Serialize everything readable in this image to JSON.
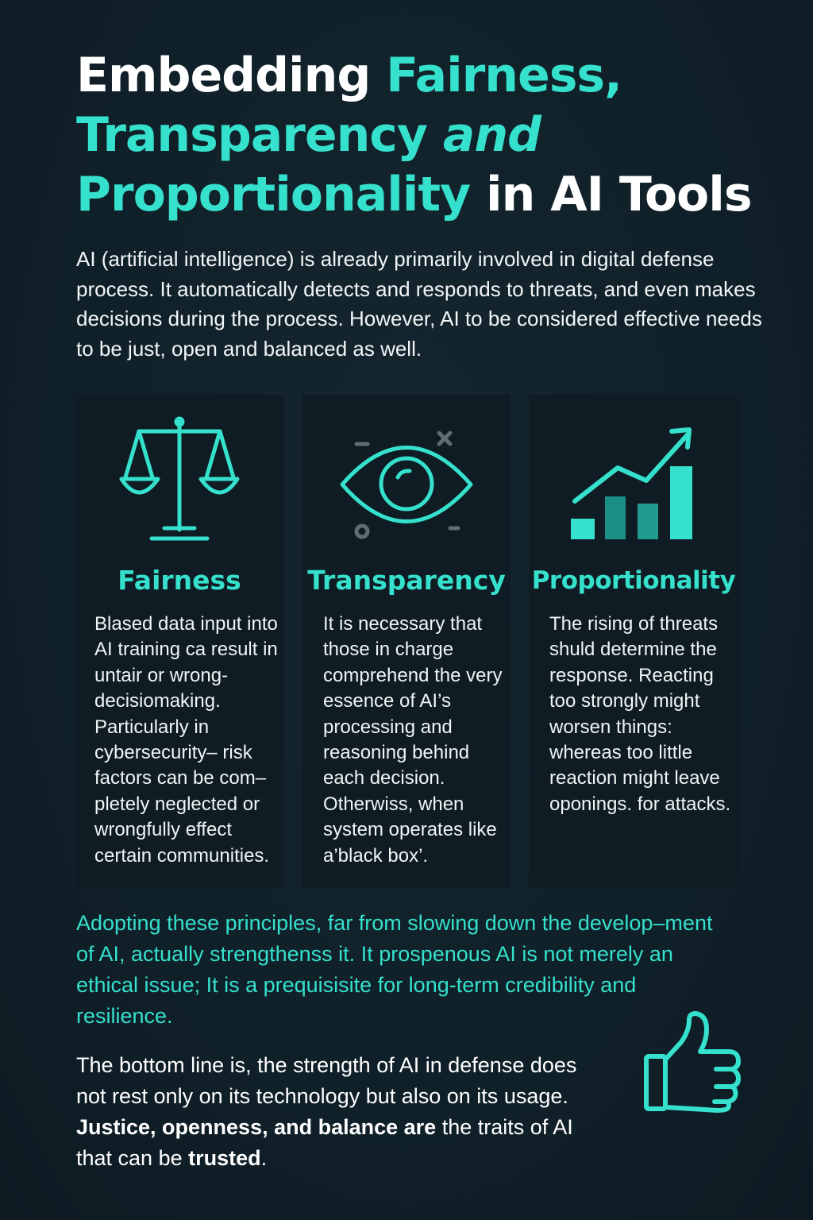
{
  "title": {
    "part1": "Embedding ",
    "part2": "Fairness,",
    "part3": "Transparency ",
    "part4": " and",
    "part5": "Proportionality",
    "part6": " in AI Tools"
  },
  "intro": "AI (artificial intelligence) is already primarily involved in digital defense process. It automatically detects and responds to threats, and even makes decisions during the process. However, AI to be considered effective needs to be just, open and balanced as well.",
  "cards": [
    {
      "title": "Fairness",
      "icon": "scales-icon",
      "text": "Blased data input into AI training ca result in untair or wrong-decisiomaking. Particularly in cybersecurity– risk factors can be com–pletely neglected or wrongfully effect certain communities."
    },
    {
      "title": "Transparency",
      "icon": "eye-icon",
      "text": "It is necessary that those in charge comprehend the very essence of AI’s processing and reasoning behind each decision. Otherwiss, when system operates like a’black box’."
    },
    {
      "title": "Proportionality",
      "icon": "rising-bar-chart-icon",
      "text": "The rising of threats shuld determine the response. Reacting too strongly might worsen things: whereas too little reaction might leave oponings. for attacks."
    }
  ],
  "highlight": "Adopting these principles, far from slowing down the develop–ment of AI, actually strengthenss it. It prospenous AI is not merely an ethical issue; It is a prequisisite for long-term credibility and resilience.",
  "bottom": {
    "part1": "The bottom line is, the strength of AI in defense does not rest only on its technology but also on its usage. ",
    "part2": "Justice, openness, and balance are",
    "part3": " the traits of AI that can be ",
    "part4": "trusted",
    "part5": "."
  },
  "colors": {
    "background": "#112029",
    "accent": "#35e0cc",
    "card": "#0f1c23",
    "text": "#ffffff"
  },
  "icons": {
    "thumb": "thumbs-up-icon"
  }
}
